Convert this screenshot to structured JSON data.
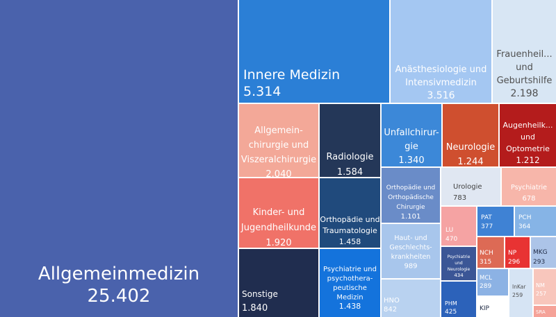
{
  "chart_data": {
    "type": "treemap",
    "title": "",
    "items": [
      {
        "id": "allgemeinmedizin",
        "lines": [
          "Allgemeinmedizin"
        ],
        "value_label": "25.402",
        "value": 25402,
        "color": "#4a62ac",
        "text_color": "#ffffff"
      },
      {
        "id": "innere-medizin",
        "lines": [
          "Innere Medizin"
        ],
        "value_label": "5.314",
        "value": 5314,
        "color": "#2b7fd6",
        "text_color": "#ffffff"
      },
      {
        "id": "anaesthesiologie",
        "lines": [
          "Anästhesiologie und",
          "Intensivmedizin"
        ],
        "value_label": "3.516",
        "value": 3516,
        "color": "#a4c7f2",
        "text_color": "#ffffff"
      },
      {
        "id": "frauenheilkunde",
        "lines": [
          "Frauenheil...",
          "und",
          "Geburtshilfe"
        ],
        "value_label": "2.198",
        "value": 2198,
        "color": "#d8e6f4",
        "text_color": "#505050"
      },
      {
        "id": "allgemeinchirurgie",
        "lines": [
          "Allgemein-",
          "chirurgie und",
          "Viszeralchirurgie"
        ],
        "value_label": "2.040",
        "value": 2040,
        "color": "#f3a898",
        "text_color": "#ffffff"
      },
      {
        "id": "radiologie",
        "lines": [
          "Radiologie"
        ],
        "value_label": "1.584",
        "value": 1584,
        "color": "#243758",
        "text_color": "#ffffff"
      },
      {
        "id": "unfallchirurgie",
        "lines": [
          "Unfallchirur-",
          "gie"
        ],
        "value_label": "1.340",
        "value": 1340,
        "color": "#3c88d8",
        "text_color": "#ffffff"
      },
      {
        "id": "neurologie",
        "lines": [
          "Neurologie"
        ],
        "value_label": "1.244",
        "value": 1244,
        "color": "#cf4f2f",
        "text_color": "#ffffff"
      },
      {
        "id": "augenheilkunde",
        "lines": [
          "Augenheilk...",
          "und",
          "Optometrie"
        ],
        "value_label": "1.212",
        "value": 1212,
        "color": "#b41c1c",
        "text_color": "#ffffff"
      },
      {
        "id": "kinder-jugend",
        "lines": [
          "Kinder- und",
          "Jugendheilkunde"
        ],
        "value_label": "1.920",
        "value": 1920,
        "color": "#f07268",
        "text_color": "#ffffff"
      },
      {
        "id": "orthopaedie-trauma",
        "lines": [
          "Orthopädie und",
          "Traumatologie"
        ],
        "value_label": "1.458",
        "value": 1458,
        "color": "#204a7c",
        "text_color": "#ffffff"
      },
      {
        "id": "orthopaedie-chirurgie",
        "lines": [
          "Orthopädie und",
          "Orthopädische",
          "Chirurgie"
        ],
        "value_label": "1.101",
        "value": 1101,
        "color": "#6a8cc8",
        "text_color": "#ffffff"
      },
      {
        "id": "urologie",
        "lines": [
          "Urologie"
        ],
        "value_label": "783",
        "value": 783,
        "color": "#e0e7f2",
        "text_color": "#404040"
      },
      {
        "id": "psychiatrie",
        "lines": [
          "Psychiatrie"
        ],
        "value_label": "678",
        "value": 678,
        "color": "#f7b6aa",
        "text_color": "#ffffff"
      },
      {
        "id": "haut",
        "lines": [
          "Haut- und",
          "Geschlechts-",
          "krankheiten"
        ],
        "value_label": "989",
        "value": 989,
        "color": "#a8c6ec",
        "text_color": "#ffffff"
      },
      {
        "id": "lu",
        "lines": [
          "LU"
        ],
        "value_label": "470",
        "value": 470,
        "color": "#f5a3a3",
        "text_color": "#ffffff"
      },
      {
        "id": "pat",
        "lines": [
          "PAT"
        ],
        "value_label": "377",
        "value": 377,
        "color": "#3f82d4",
        "text_color": "#ffffff"
      },
      {
        "id": "pch",
        "lines": [
          "PCH"
        ],
        "value_label": "364",
        "value": 364,
        "color": "#86b4e6",
        "text_color": "#ffffff"
      },
      {
        "id": "sonstige",
        "lines": [
          "Sonstige"
        ],
        "value_label": "1.840",
        "value": 1840,
        "color": "#202d4f",
        "text_color": "#ffffff"
      },
      {
        "id": "psychiatrie-psychotherapie",
        "lines": [
          "Psychiatrie und",
          "psychothera-",
          "peutische",
          "Medizin"
        ],
        "value_label": "1.438",
        "value": 1438,
        "color": "#1473dc",
        "text_color": "#ffffff"
      },
      {
        "id": "hno",
        "lines": [
          "HNO"
        ],
        "value_label": "842",
        "value": 842,
        "color": "#b9d2f0",
        "text_color": "#ffffff"
      },
      {
        "id": "psych-neuro",
        "lines": [
          "Psychiatrie",
          "und",
          "Neurologie"
        ],
        "value_label": "434",
        "value": 434,
        "color": "#3b5696",
        "text_color": "#ffffff"
      },
      {
        "id": "phm",
        "lines": [
          "PHM"
        ],
        "value_label": "425",
        "value": 425,
        "color": "#2c62ba",
        "text_color": "#ffffff"
      },
      {
        "id": "nch",
        "lines": [
          "NCH"
        ],
        "value_label": "315",
        "value": 315,
        "color": "#dd6a55",
        "text_color": "#ffffff"
      },
      {
        "id": "np",
        "lines": [
          "NP"
        ],
        "value_label": "296",
        "value": 296,
        "color": "#e83333",
        "text_color": "#ffffff"
      },
      {
        "id": "mkg",
        "lines": [
          "MKG"
        ],
        "value_label": "293",
        "value": 293,
        "color": "#acc4e8",
        "text_color": "#1f2a44"
      },
      {
        "id": "mcl",
        "lines": [
          "MCL"
        ],
        "value_label": "289",
        "value": 289,
        "color": "#8cb2e4",
        "text_color": "#ffffff"
      },
      {
        "id": "kip",
        "lines": [
          "KIP"
        ],
        "value_label": "",
        "value": null,
        "color": "#ffffff",
        "text_color": "#1f2a44"
      },
      {
        "id": "inkar",
        "lines": [
          "InKar"
        ],
        "value_label": "259",
        "value": 259,
        "color": "#d6e4f4",
        "text_color": "#505050"
      },
      {
        "id": "nm",
        "lines": [
          "NM"
        ],
        "value_label": "257",
        "value": 257,
        "color": "#f8c6bc",
        "text_color": "#ffffff"
      },
      {
        "id": "sra",
        "lines": [
          "SRA"
        ],
        "value_label": "",
        "value": null,
        "color": "#f5a298",
        "text_color": "#ffffff"
      }
    ]
  }
}
